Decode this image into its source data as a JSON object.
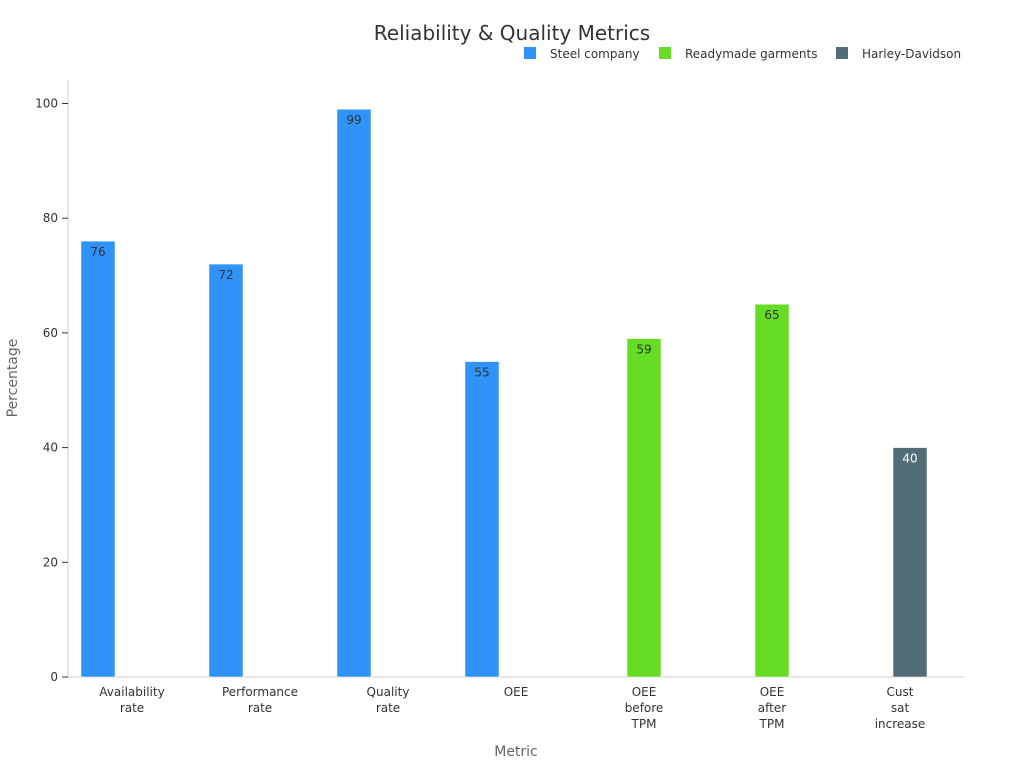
{
  "chart_data": {
    "type": "bar",
    "title": "Reliability & Quality Metrics",
    "xlabel": "Metric",
    "ylabel": "Percentage",
    "ylim": [
      0,
      104
    ],
    "yticks": [
      0,
      20,
      40,
      60,
      80,
      100
    ],
    "grid": false,
    "legend_position": "top-right",
    "categories": [
      [
        "Availability",
        "rate"
      ],
      [
        "Performance",
        "rate"
      ],
      [
        "Quality",
        "rate"
      ],
      [
        "OEE"
      ],
      [
        "OEE",
        "before",
        "TPM"
      ],
      [
        "OEE",
        "after",
        "TPM"
      ],
      [
        "Cust",
        "sat",
        "increase"
      ]
    ],
    "series": [
      {
        "name": "Steel company",
        "color": "#2f93fa",
        "label_color": "#333333",
        "values": [
          76,
          72,
          99,
          55,
          null,
          null,
          null
        ]
      },
      {
        "name": "Readymade garments",
        "color": "#66dc25",
        "label_color": "#333333",
        "values": [
          null,
          null,
          null,
          null,
          59,
          65,
          null
        ]
      },
      {
        "name": "Harley-Davidson",
        "color": "#526d78",
        "label_color": "#ffffff",
        "values": [
          null,
          null,
          null,
          null,
          null,
          null,
          40
        ]
      }
    ]
  }
}
